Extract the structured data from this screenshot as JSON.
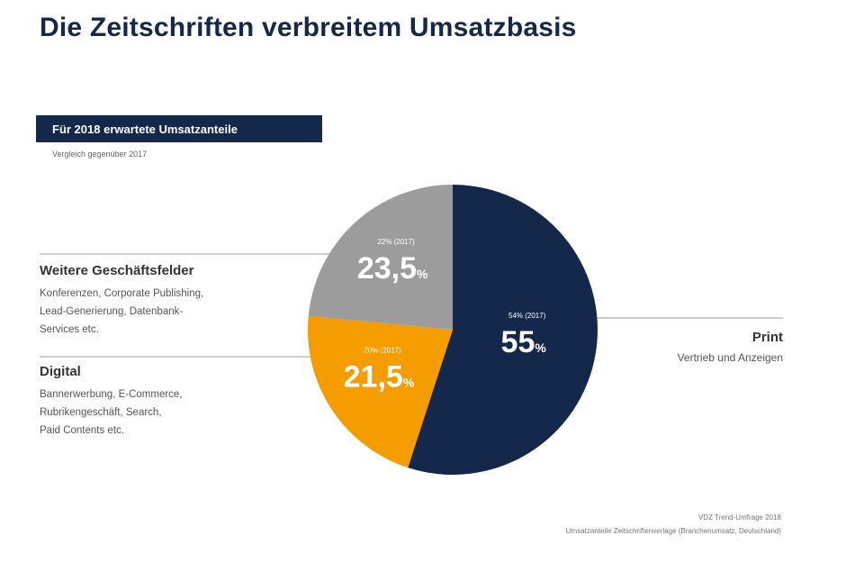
{
  "title": "Die Zeitschriften verbreitem Umsatzbasis",
  "tag": "Für 2018 erwartete Umsatzanteile",
  "subtitle": "Vergleich gegenüber 2017",
  "chart_data": {
    "type": "pie",
    "slices": [
      {
        "label": "Print",
        "value": 55,
        "value_label": "55",
        "prior": "54% (2017)",
        "color": "#14284b"
      },
      {
        "label": "Digital",
        "value": 21.5,
        "value_label": "21,5",
        "prior": "20% (2017)",
        "color": "#f59c00"
      },
      {
        "label": "Weitere Geschäftsfelder",
        "value": 23.5,
        "value_label": "23,5",
        "prior": "22% (2017)",
        "color": "#9c9c9c"
      }
    ],
    "unit": "%",
    "start_angle_deg": 0,
    "direction": "clockwise"
  },
  "categories": {
    "weitere": {
      "title": "Weitere Geschäftsfelder",
      "desc": [
        "Konferenzen, Corporate Publishing,",
        "Lead-Generierung, Datenbank-",
        "Services etc."
      ]
    },
    "digital": {
      "title": "Digital",
      "desc": [
        "Bannerwerbung, E-Commerce,",
        "Rubrikengeschäft, Search,",
        "Paid Contents etc."
      ]
    },
    "print": {
      "title": "Print",
      "desc": "Vertrieb und Anzeigen"
    }
  },
  "footer": {
    "line1": "VDZ Trend-Umfrage 2018",
    "line2": "Umsatzanteile Zeitschriftenverlage (Branchenumsatz, Deutschland)"
  }
}
